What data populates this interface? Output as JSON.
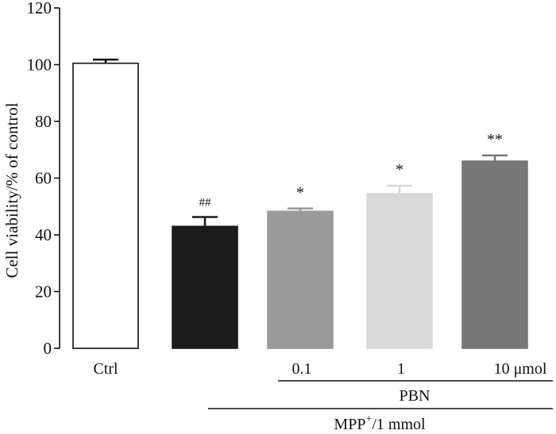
{
  "chart_data": {
    "type": "bar",
    "ylabel": "Cell viability/% of control",
    "ylim": [
      0,
      120
    ],
    "yticks": [
      0,
      20,
      40,
      60,
      80,
      100,
      120
    ],
    "grid": false,
    "bars": [
      {
        "category": "Ctrl",
        "value": 100.5,
        "error": 1.3,
        "annotation": "",
        "color": "#ffffff",
        "outline": "#111111"
      },
      {
        "category": "",
        "value": 43,
        "error": 3.3,
        "annotation": "##",
        "color": "#1c1c1c",
        "outline": "#1c1c1c"
      },
      {
        "category": "0.1",
        "value": 48.3,
        "error": 1.0,
        "annotation": "*",
        "color": "#9a9a9a",
        "outline": "#9a9a9a"
      },
      {
        "category": "1",
        "value": 54.5,
        "error": 2.8,
        "annotation": "*",
        "color": "#d9d9d9",
        "outline": "#d9d9d9"
      },
      {
        "category": "10 μmol",
        "value": 66,
        "error": 2.0,
        "annotation": "**",
        "color": "#777777",
        "outline": "#777777"
      }
    ],
    "group_labels": {
      "pbn": "PBN",
      "mpp_base": "MPP",
      "mpp_sup": "+",
      "mpp_rest": "/1 mmol"
    }
  }
}
